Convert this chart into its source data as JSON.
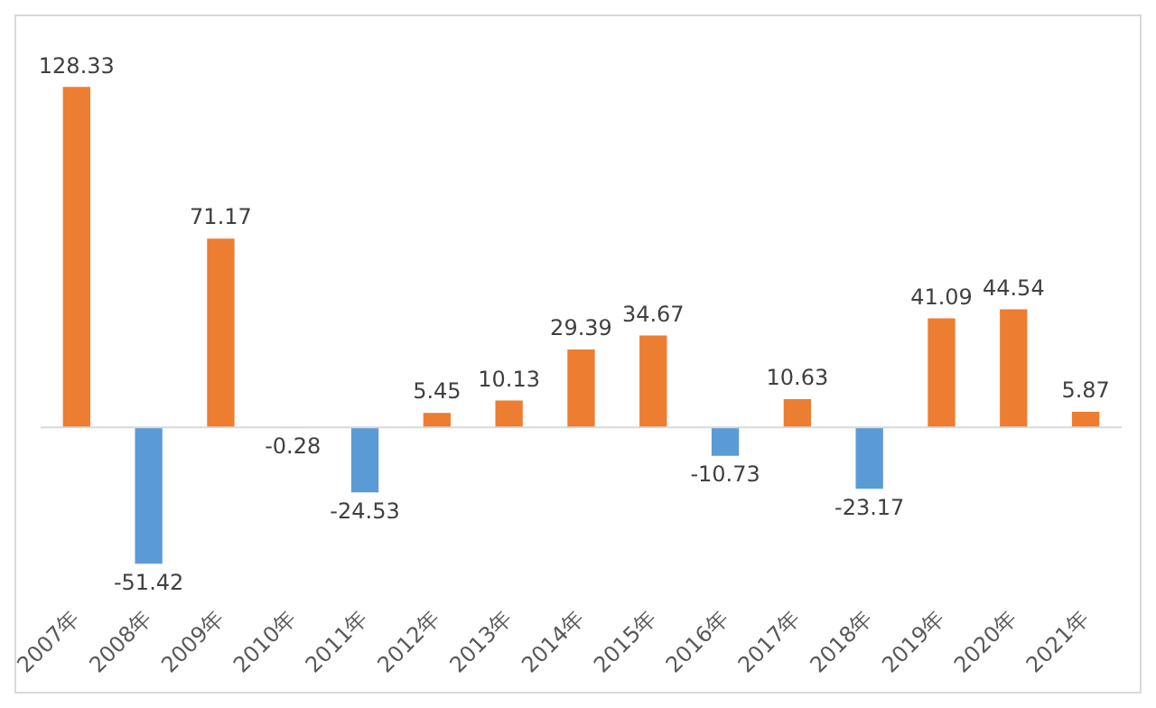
{
  "chart_data": {
    "type": "bar",
    "categories": [
      "2007年",
      "2008年",
      "2009年",
      "2010年",
      "2011年",
      "2012年",
      "2013年",
      "2014年",
      "2015年",
      "2016年",
      "2017年",
      "2018年",
      "2019年",
      "2020年",
      "2021年"
    ],
    "values": [
      128.33,
      -51.42,
      71.17,
      -0.28,
      -24.53,
      5.45,
      10.13,
      29.39,
      34.67,
      -10.73,
      10.63,
      -23.17,
      41.09,
      44.54,
      5.87
    ],
    "colors": [
      "#ed7d31",
      "#5b9bd5",
      "#ed7d31",
      "#5b9bd5",
      "#5b9bd5",
      "#ed7d31",
      "#ed7d31",
      "#ed7d31",
      "#ed7d31",
      "#5b9bd5",
      "#ed7d31",
      "#5b9bd5",
      "#ed7d31",
      "#ed7d31",
      "#ed7d31"
    ],
    "data_labels": true,
    "grid": false,
    "legend": false
  }
}
